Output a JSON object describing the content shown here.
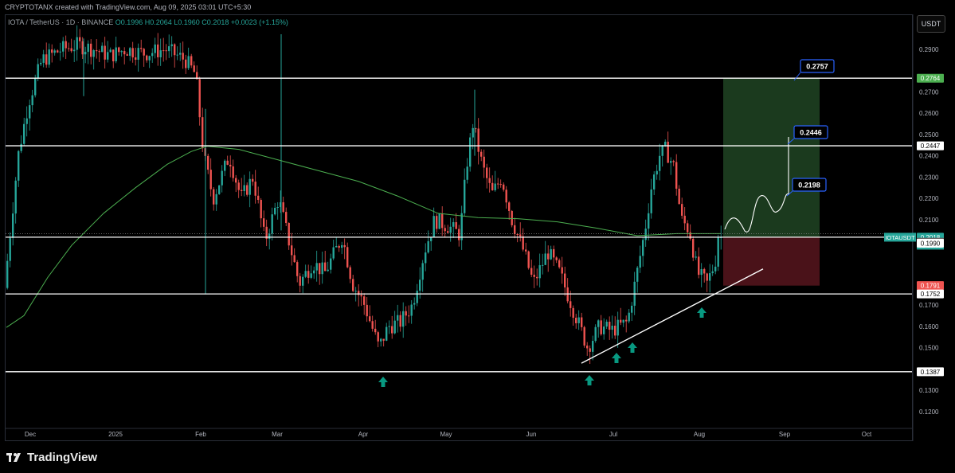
{
  "header": {
    "attribution": "CRYPTOTANX created with TradingView.com, Aug 09, 2025 03:01 UTC+5:30",
    "symbol": "IOTA / TetherUS · 1D · BINANCE",
    "ohlc": "O0.1996 H0.2064 L0.1960 C0.2018",
    "change": "+0.0023 (+1.15%)"
  },
  "currency_button": "USDT",
  "brand": "TradingView",
  "colors": {
    "background": "#000000",
    "up": "#26a69a",
    "down": "#ef5350",
    "ma": "#4caf50",
    "target_zone": "#1b3a1e",
    "stop_zone": "#4a1219",
    "callout_border": "#2962ff",
    "arrow": "#089981"
  },
  "chart_data": {
    "type": "candlestick",
    "x_axis": {
      "ticks": [
        "Dec",
        "2025",
        "Feb",
        "Mar",
        "Apr",
        "May",
        "Jun",
        "Jul",
        "Aug",
        "Sep",
        "Oct"
      ]
    },
    "y_axis": {
      "range": [
        0.115,
        0.297
      ],
      "ticks": [
        "0.2900",
        "0.2700",
        "0.2600",
        "0.2500",
        "0.2400",
        "0.2300",
        "0.2200",
        "0.2100",
        "0.1700",
        "0.1600",
        "0.1500",
        "0.1300",
        "0.1200"
      ]
    },
    "horizontal_levels": [
      {
        "value": 0.2764,
        "label": "0.2764"
      },
      {
        "value": 0.2447,
        "label": "0.2447"
      },
      {
        "value": 0.2018,
        "label": "0.2018"
      },
      {
        "value": 0.1752,
        "label": "0.1752"
      },
      {
        "value": 0.1387,
        "label": "0.1387"
      }
    ],
    "price_tags": [
      {
        "value": 0.2764,
        "label": "0.2764",
        "color": "#4caf50"
      },
      {
        "value": 0.2018,
        "label": "0.2018",
        "color": "#26a69a",
        "symbol": "IOTAUSDT",
        "countdown": "02:28:51"
      },
      {
        "value": 0.1995,
        "label": "0.1995",
        "color": "#555555"
      },
      {
        "value": 0.199,
        "label": "0.1990",
        "color": "#ffffff"
      },
      {
        "value": 0.1791,
        "label": "0.1791",
        "color": "#ef5350"
      }
    ],
    "targets": [
      {
        "value": 0.2757,
        "label": "0.2757"
      },
      {
        "value": 0.2446,
        "label": "0.2446"
      },
      {
        "value": 0.2198,
        "label": "0.2198"
      }
    ],
    "position": {
      "entry": 0.2018,
      "target": 0.2764,
      "stop": 0.1791
    }
  }
}
